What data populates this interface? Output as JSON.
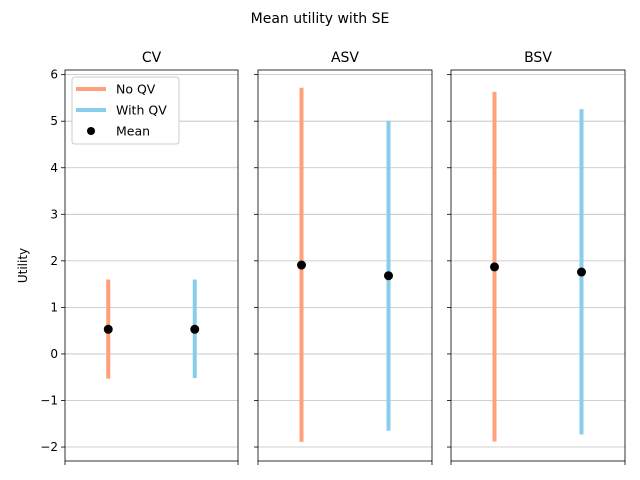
{
  "chart_data": {
    "type": "errorbar",
    "title": "Mean utility with SE",
    "ylabel": "Utility",
    "ylim": [
      -2.3,
      6.1
    ],
    "yticks": [
      -2,
      -1,
      0,
      1,
      2,
      3,
      4,
      5,
      6
    ],
    "grid": "y",
    "legend_position": "upper-left (first panel)",
    "legend": [
      {
        "label": "No QV",
        "color": "#FFA07A",
        "kind": "line"
      },
      {
        "label": "With QV",
        "color": "#87CEEB",
        "kind": "line"
      },
      {
        "label": "Mean",
        "color": "#000000",
        "kind": "marker"
      }
    ],
    "panels": [
      {
        "title": "CV",
        "series": [
          {
            "name": "No QV",
            "mean": 0.53,
            "low": -0.53,
            "high": 1.6
          },
          {
            "name": "With QV",
            "mean": 0.53,
            "low": -0.52,
            "high": 1.6
          }
        ]
      },
      {
        "title": "ASV",
        "series": [
          {
            "name": "No QV",
            "mean": 1.91,
            "low": -1.89,
            "high": 5.72
          },
          {
            "name": "With QV",
            "mean": 1.68,
            "low": -1.65,
            "high": 5.01
          }
        ]
      },
      {
        "title": "BSV",
        "series": [
          {
            "name": "No QV",
            "mean": 1.87,
            "low": -1.88,
            "high": 5.63
          },
          {
            "name": "With QV",
            "mean": 1.76,
            "low": -1.73,
            "high": 5.26
          }
        ]
      }
    ]
  }
}
